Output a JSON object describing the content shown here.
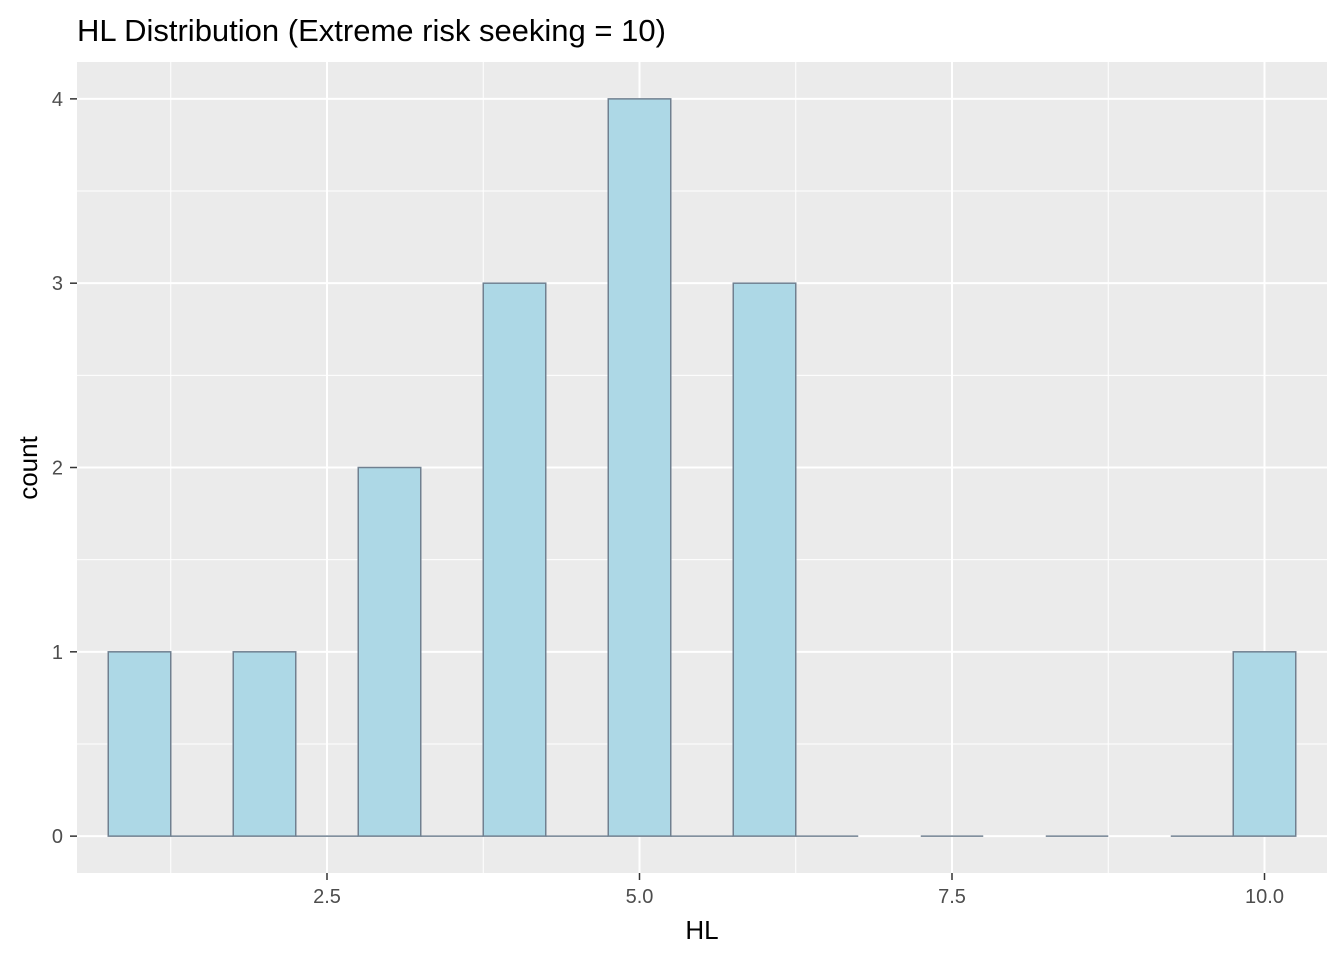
{
  "chart_data": {
    "type": "bar",
    "title": "HL Distribution (Extreme risk seeking = 10)",
    "xlabel": "HL",
    "ylabel": "count",
    "bins": [
      {
        "x": 1,
        "count": 1
      },
      {
        "x": 2,
        "count": 1
      },
      {
        "x": 3,
        "count": 2
      },
      {
        "x": 4,
        "count": 3
      },
      {
        "x": 5,
        "count": 4
      },
      {
        "x": 6,
        "count": 3
      },
      {
        "x": 7,
        "count": 0
      },
      {
        "x": 8,
        "count": 0
      },
      {
        "x": 9,
        "count": 0
      },
      {
        "x": 10,
        "count": 1
      }
    ],
    "bin_width": 0.5,
    "xlim": [
      0.5,
      10.5
    ],
    "ylim": [
      -0.2,
      4.2
    ],
    "x_ticks": [
      2.5,
      5.0,
      7.5,
      10.0
    ],
    "x_tick_labels": [
      "2.5",
      "5.0",
      "7.5",
      "10.0"
    ],
    "y_ticks": [
      0,
      1,
      2,
      3,
      4
    ],
    "y_tick_labels": [
      "0",
      "1",
      "2",
      "3",
      "4"
    ],
    "grid": true,
    "colors": {
      "bar_fill": "#ADD8E6",
      "bar_outline": "#708090",
      "panel_background": "#EBEBEB",
      "grid": "#FFFFFF"
    }
  }
}
